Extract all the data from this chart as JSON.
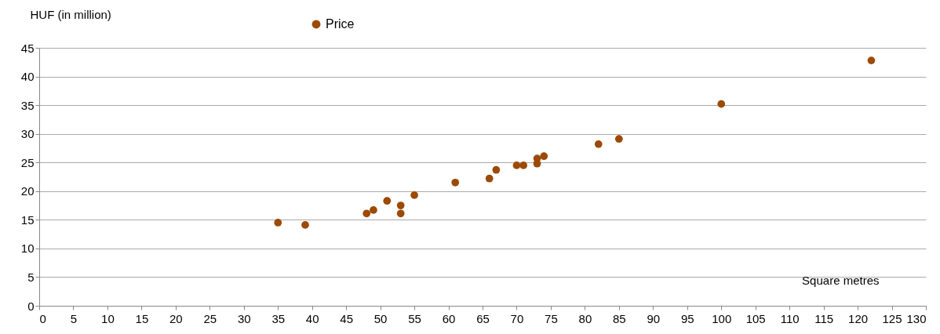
{
  "chart_data": {
    "type": "scatter",
    "xlabel": "Square metres",
    "ylabel": "HUF (in million)",
    "x": [
      35,
      39,
      48,
      49,
      51,
      53,
      53,
      55,
      61,
      66,
      67,
      70,
      71,
      73,
      73,
      74,
      82,
      85,
      100,
      122
    ],
    "series": [
      {
        "name": "Price",
        "color": "#9c4a06",
        "values": [
          14.5,
          14.1,
          16.1,
          16.7,
          18.3,
          17.5,
          16.1,
          19.3,
          21.5,
          22.2,
          23.7,
          24.5,
          24.5,
          25.7,
          24.8,
          26.1,
          28.2,
          29.1,
          35.2,
          42.8
        ]
      }
    ],
    "xlim": [
      0,
      130
    ],
    "xticks": [
      0,
      5,
      10,
      15,
      20,
      25,
      30,
      35,
      40,
      45,
      50,
      55,
      60,
      65,
      70,
      75,
      80,
      85,
      90,
      95,
      100,
      105,
      110,
      115,
      120,
      125,
      130
    ],
    "ylim": [
      0,
      45
    ],
    "yticks": [
      0,
      5,
      10,
      15,
      20,
      25,
      30,
      35,
      40,
      45
    ],
    "grid": "y",
    "legend": "top",
    "marker": "circle"
  }
}
